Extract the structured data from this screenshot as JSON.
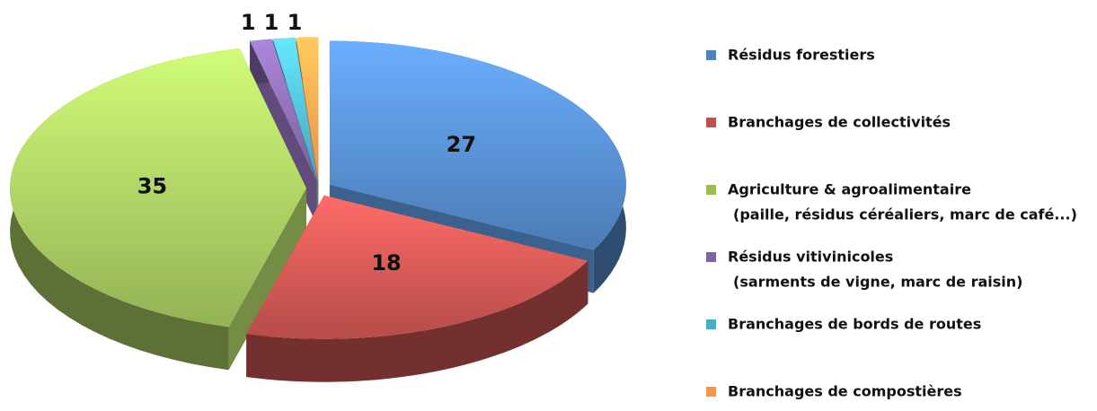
{
  "chart_data": {
    "type": "pie",
    "categories": [
      "Résidus forestiers",
      "Branchages de collectivités",
      "Agriculture & agroalimentaire",
      "Résidus vitivinicoles",
      "Branchages de bords de routes",
      "Branchages de compostières"
    ],
    "category_details": [
      null,
      null,
      "(paille, résidus céréaliers, marc de café...)",
      "(sarments de vigne, marc de raisin)",
      null,
      null
    ],
    "values": [
      27,
      18,
      35,
      1,
      1,
      1
    ],
    "colors": [
      "#4f81bd",
      "#c0504d",
      "#9bbb59",
      "#8064a2",
      "#4bacc6",
      "#f79646"
    ],
    "legend": "right"
  }
}
